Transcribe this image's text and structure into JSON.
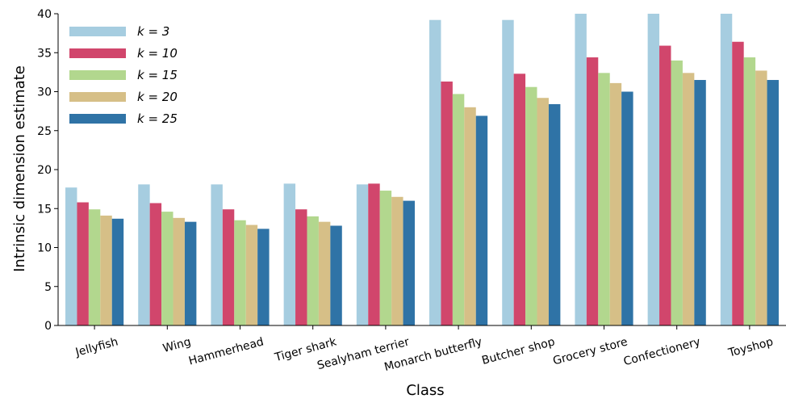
{
  "chart_data": {
    "type": "bar",
    "xlabel": "Class",
    "ylabel": "Intrinsic dimension estimate",
    "ylim": [
      0,
      40
    ],
    "yticks": [
      0,
      5,
      10,
      15,
      20,
      25,
      30,
      35,
      40
    ],
    "grid": false,
    "legend_position": "top-left",
    "categories": [
      "Jellyfish",
      "Wing",
      "Hammerhead",
      "Tiger shark",
      "Sealyham terrier",
      "Monarch butterfly",
      "Butcher shop",
      "Grocery store",
      "Confectionery",
      "Toyshop"
    ],
    "series": [
      {
        "name": "k = 3",
        "color": "#a6cde0",
        "values": [
          17.7,
          18.1,
          18.1,
          18.2,
          18.1,
          39.2,
          39.2,
          40.0,
          40.0,
          40.0
        ]
      },
      {
        "name": "k = 10",
        "color": "#d1466c",
        "values": [
          15.8,
          15.7,
          14.9,
          14.9,
          18.2,
          31.3,
          32.3,
          34.4,
          35.9,
          36.4
        ]
      },
      {
        "name": "k = 15",
        "color": "#b2d78e",
        "values": [
          14.9,
          14.6,
          13.5,
          14.0,
          17.3,
          29.7,
          30.6,
          32.4,
          34.0,
          34.4
        ]
      },
      {
        "name": "k = 20",
        "color": "#d6bf87",
        "values": [
          14.1,
          13.8,
          12.9,
          13.3,
          16.5,
          28.0,
          29.2,
          31.1,
          32.4,
          32.7
        ]
      },
      {
        "name": "k = 25",
        "color": "#2f73a6",
        "values": [
          13.7,
          13.3,
          12.4,
          12.8,
          16.0,
          26.9,
          28.4,
          30.0,
          31.5,
          31.5
        ]
      }
    ]
  }
}
